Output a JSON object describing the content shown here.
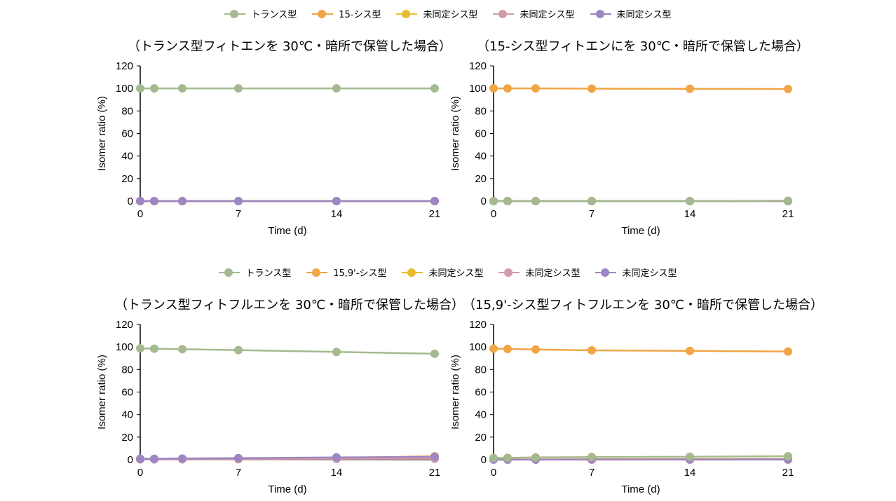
{
  "legends": [
    {
      "items": [
        {
          "label": "トランス型",
          "color": "#a5b98e"
        },
        {
          "label": "15-シス型",
          "color": "#f0a546"
        },
        {
          "label": "未同定シス型",
          "color": "#e6bd2e"
        },
        {
          "label": "未同定シス型",
          "color": "#d39aa8"
        },
        {
          "label": "未同定シス型",
          "color": "#9d86c3"
        }
      ]
    },
    {
      "items": [
        {
          "label": "トランス型",
          "color": "#a5b98e"
        },
        {
          "label": "15,9'-シス型",
          "color": "#f0a546"
        },
        {
          "label": "未同定シス型",
          "color": "#e6bd2e"
        },
        {
          "label": "未同定シス型",
          "color": "#d39aa8"
        },
        {
          "label": "未同定シス型",
          "color": "#9d86c3"
        }
      ]
    }
  ],
  "chart_data": [
    {
      "type": "line",
      "title": "（トランス型フィトエンを 30℃・暗所で保管した場合）",
      "xlabel": "Time (d)",
      "ylabel": "Isomer ratio (%)",
      "x": [
        0,
        1,
        3,
        7,
        14,
        21
      ],
      "xticks": [
        0,
        7,
        14,
        21
      ],
      "yticks": [
        0,
        20,
        40,
        60,
        80,
        100,
        120
      ],
      "ylim": [
        0,
        120
      ],
      "xlim": [
        0,
        21
      ],
      "series": [
        {
          "name": "トランス型",
          "color": "#a5b98e",
          "values": [
            100,
            100,
            100,
            100,
            100,
            100
          ]
        },
        {
          "name": "15-シス型",
          "color": "#f0a546",
          "values": [
            0,
            0,
            0,
            0,
            0,
            0
          ]
        },
        {
          "name": "未同定シス型",
          "color": "#e6bd2e",
          "values": [
            0,
            0,
            0,
            0,
            0,
            0
          ]
        },
        {
          "name": "未同定シス型",
          "color": "#d39aa8",
          "values": [
            0,
            0,
            0,
            0,
            0,
            0
          ]
        },
        {
          "name": "未同定シス型",
          "color": "#9d86c3",
          "values": [
            0,
            0,
            0,
            0,
            0,
            0
          ]
        }
      ]
    },
    {
      "type": "line",
      "title": "（15-シス型フィトエンにを 30℃・暗所で保管した場合）",
      "xlabel": "Time (d)",
      "ylabel": "Isomer ratio (%)",
      "x": [
        0,
        1,
        3,
        7,
        14,
        21
      ],
      "xticks": [
        0,
        7,
        14,
        21
      ],
      "yticks": [
        0,
        20,
        40,
        60,
        80,
        100,
        120
      ],
      "ylim": [
        0,
        120
      ],
      "xlim": [
        0,
        21
      ],
      "series": [
        {
          "name": "15-シス型",
          "color": "#f0a546",
          "values": [
            100,
            100,
            100,
            99.8,
            99.6,
            99.5
          ]
        },
        {
          "name": "未同定シス型",
          "color": "#e6bd2e",
          "values": [
            0,
            0,
            0,
            0,
            0,
            0
          ]
        },
        {
          "name": "未同定シス型",
          "color": "#d39aa8",
          "values": [
            0,
            0,
            0,
            0,
            0,
            0
          ]
        },
        {
          "name": "未同定シス型",
          "color": "#9d86c3",
          "values": [
            0,
            0,
            0,
            0,
            0,
            0
          ]
        },
        {
          "name": "トランス型",
          "color": "#a5b98e",
          "values": [
            0,
            0,
            0,
            0,
            0,
            0.3
          ]
        }
      ]
    },
    {
      "type": "line",
      "title": "（トランス型フィトフルエンを 30℃・暗所で保管した場合）",
      "xlabel": "Time (d)",
      "ylabel": "Isomer ratio (%)",
      "x": [
        0,
        1,
        3,
        7,
        14,
        21
      ],
      "xticks": [
        0,
        7,
        14,
        21
      ],
      "yticks": [
        0,
        20,
        40,
        60,
        80,
        100,
        120
      ],
      "ylim": [
        0,
        120
      ],
      "xlim": [
        0,
        21
      ],
      "series": [
        {
          "name": "トランス型",
          "color": "#a5b98e",
          "values": [
            98.8,
            98.5,
            98,
            97.2,
            95.6,
            94
          ]
        },
        {
          "name": "15,9'-シス型",
          "color": "#f0a546",
          "values": [
            0.5,
            0.5,
            0.7,
            1.0,
            1.6,
            3.0
          ]
        },
        {
          "name": "未同定シス型",
          "color": "#e6bd2e",
          "values": [
            0.4,
            0.5,
            0.6,
            0.9,
            1.5,
            2.5
          ]
        },
        {
          "name": "未同定シス型",
          "color": "#d39aa8",
          "values": [
            0.2,
            0.2,
            0.3,
            0.4,
            0.6,
            0.8
          ]
        },
        {
          "name": "未同定シス型",
          "color": "#9d86c3",
          "values": [
            0.8,
            0.8,
            1.0,
            1.4,
            2.0,
            2.5
          ]
        }
      ]
    },
    {
      "type": "line",
      "title": "（15,9'-シス型フィトフルエンを 30℃・暗所で保管した場合）",
      "xlabel": "Time (d)",
      "ylabel": "Isomer ratio (%)",
      "x": [
        0,
        1,
        3,
        7,
        14,
        21
      ],
      "xticks": [
        0,
        7,
        14,
        21
      ],
      "yticks": [
        0,
        20,
        40,
        60,
        80,
        100,
        120
      ],
      "ylim": [
        0,
        120
      ],
      "xlim": [
        0,
        21
      ],
      "series": [
        {
          "name": "15,9'-シス型",
          "color": "#f0a546",
          "values": [
            98.5,
            98.2,
            97.8,
            97,
            96.5,
            96
          ]
        },
        {
          "name": "未同定シス型",
          "color": "#e6bd2e",
          "values": [
            0.2,
            0.2,
            0.3,
            0.4,
            0.5,
            0.6
          ]
        },
        {
          "name": "未同定シス型",
          "color": "#d39aa8",
          "values": [
            0,
            0,
            0,
            0,
            0,
            0
          ]
        },
        {
          "name": "未同定シス型",
          "color": "#9d86c3",
          "values": [
            0.1,
            0.1,
            0.1,
            0.2,
            0.2,
            0.3
          ]
        },
        {
          "name": "トランス型",
          "color": "#a5b98e",
          "values": [
            1.5,
            1.6,
            2.0,
            2.3,
            2.6,
            3.0
          ]
        }
      ]
    }
  ]
}
